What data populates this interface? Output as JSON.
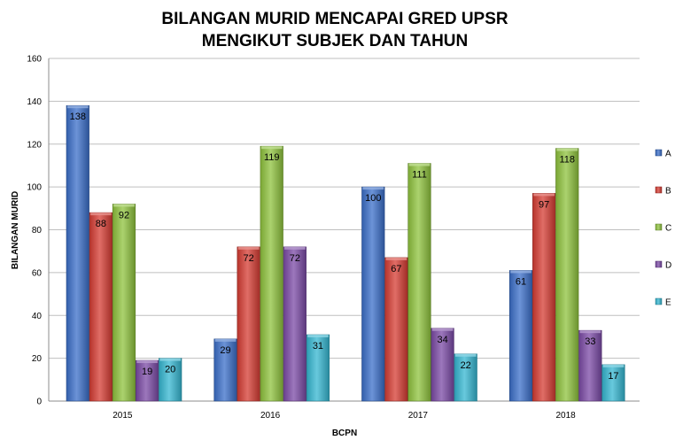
{
  "chart_data": {
    "type": "bar",
    "title": [
      "BILANGAN MURID MENCAPAI GRED UPSR",
      "MENGIKUT SUBJEK DAN TAHUN"
    ],
    "xlabel": "BCPN",
    "ylabel": "BILANGAN  MURID",
    "categories": [
      "2015",
      "2016",
      "2017",
      "2018"
    ],
    "ylim": [
      0,
      160
    ],
    "yticks": [
      0,
      20,
      40,
      60,
      80,
      100,
      120,
      140,
      160
    ],
    "grid": true,
    "legend_position": "right",
    "data_labels": true,
    "series": [
      {
        "name": "A",
        "color": "#3b6fc9",
        "values": [
          138,
          29,
          100,
          61
        ]
      },
      {
        "name": "B",
        "color": "#d63c33",
        "values": [
          88,
          72,
          67,
          97
        ]
      },
      {
        "name": "C",
        "color": "#8fc33d",
        "values": [
          92,
          119,
          111,
          118
        ]
      },
      {
        "name": "D",
        "color": "#7b4aa6",
        "values": [
          19,
          72,
          34,
          33
        ]
      },
      {
        "name": "E",
        "color": "#35b7d1",
        "values": [
          20,
          31,
          22,
          17
        ]
      }
    ]
  }
}
